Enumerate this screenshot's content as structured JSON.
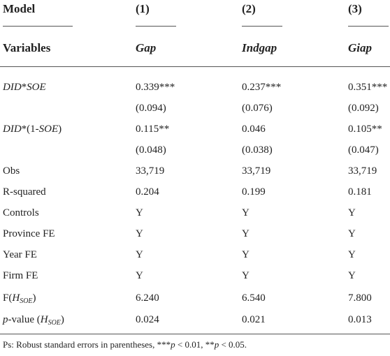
{
  "header": {
    "model": "Model",
    "columns": [
      "(1)",
      "(2)",
      "(3)"
    ],
    "variables": "Variables",
    "names": [
      "Gap",
      "Indgap",
      "Giap"
    ]
  },
  "table": {
    "rows": [
      {
        "label": [
          "DID",
          "*",
          "SOE"
        ],
        "cells": [
          "0.339***",
          "0.237***",
          "0.351***"
        ]
      },
      {
        "cells": [
          "(0.094)",
          "(0.076)",
          "(0.092)"
        ]
      },
      {
        "label": [
          "DID",
          "*(1-",
          "SOE",
          ")"
        ],
        "cells": [
          "0.115**",
          "0.046",
          "0.105**"
        ]
      },
      {
        "cells": [
          "(0.048)",
          "(0.038)",
          "(0.047)"
        ]
      },
      {
        "label": [
          "Obs"
        ],
        "cells": [
          "33,719",
          "33,719",
          "33,719"
        ]
      },
      {
        "label": [
          "R-squared"
        ],
        "cells": [
          "0.204",
          "0.199",
          "0.181"
        ]
      },
      {
        "label": [
          "Controls"
        ],
        "cells": [
          "Y",
          "Y",
          "Y"
        ]
      },
      {
        "label": [
          "Province FE"
        ],
        "cells": [
          "Y",
          "Y",
          "Y"
        ]
      },
      {
        "label": [
          "Year FE"
        ],
        "cells": [
          "Y",
          "Y",
          "Y"
        ]
      },
      {
        "label": [
          "Firm FE"
        ],
        "cells": [
          "Y",
          "Y",
          "Y"
        ]
      },
      {
        "label": [
          "F(",
          "H",
          "SOE",
          ")"
        ],
        "cells": [
          "6.240",
          "6.540",
          "7.800"
        ]
      },
      {
        "label": [
          "p",
          "-value (",
          "H",
          "SOE",
          ")"
        ],
        "cells": [
          "0.024",
          "0.021",
          "0.013"
        ]
      }
    ]
  },
  "footnote": [
    "Ps: Robust standard errors in parentheses, ***",
    "p",
    " < 0.01, **",
    "p",
    " < 0.05."
  ]
}
